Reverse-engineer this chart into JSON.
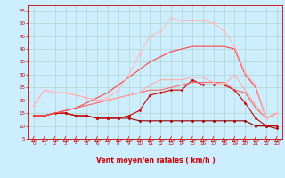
{
  "background_color": "#cceeff",
  "grid_color": "#aaccbb",
  "xlabel": "Vent moyen/en rafales ( km/h )",
  "xlabel_color": "#cc0000",
  "tick_color": "#cc0000",
  "xlim": [
    -0.5,
    23.5
  ],
  "ylim": [
    5,
    57
  ],
  "yticks": [
    5,
    10,
    15,
    20,
    25,
    30,
    35,
    40,
    45,
    50,
    55
  ],
  "xticks": [
    0,
    1,
    2,
    3,
    4,
    5,
    6,
    7,
    8,
    9,
    10,
    11,
    12,
    13,
    14,
    15,
    16,
    17,
    18,
    19,
    20,
    21,
    22,
    23
  ],
  "series": [
    {
      "x": [
        0,
        1,
        2,
        3,
        4,
        5,
        6,
        7,
        8,
        9,
        10,
        11,
        12,
        13,
        14,
        15,
        16,
        17,
        18,
        19,
        20,
        21,
        22,
        23
      ],
      "y": [
        14,
        14,
        15,
        15,
        14,
        14,
        13,
        13,
        13,
        13,
        12,
        12,
        12,
        12,
        12,
        12,
        12,
        12,
        12,
        12,
        12,
        10,
        10,
        9
      ],
      "color": "#990000",
      "lw": 0.8,
      "marker": "D",
      "markersize": 1.5
    },
    {
      "x": [
        0,
        1,
        2,
        3,
        4,
        5,
        6,
        7,
        8,
        9,
        10,
        11,
        12,
        13,
        14,
        15,
        16,
        17,
        18,
        19,
        20,
        21,
        22,
        23
      ],
      "y": [
        14,
        14,
        15,
        15,
        14,
        14,
        13,
        13,
        13,
        14,
        16,
        22,
        23,
        24,
        24,
        28,
        26,
        26,
        26,
        24,
        19,
        13,
        10,
        10
      ],
      "color": "#cc0000",
      "lw": 0.8,
      "marker": "D",
      "markersize": 1.5
    },
    {
      "x": [
        0,
        1,
        2,
        3,
        4,
        5,
        6,
        7,
        8,
        9,
        10,
        11,
        12,
        13,
        14,
        15,
        16,
        17,
        18,
        19,
        20,
        21,
        22,
        23
      ],
      "y": [
        14,
        14,
        15,
        16,
        17,
        18,
        19,
        20,
        21,
        22,
        23,
        24,
        24,
        25,
        26,
        27,
        27,
        27,
        27,
        24,
        23,
        17,
        13,
        15
      ],
      "color": "#ff6666",
      "lw": 0.8,
      "marker": null
    },
    {
      "x": [
        0,
        1,
        2,
        3,
        4,
        5,
        6,
        7,
        8,
        9,
        10,
        11,
        12,
        13,
        14,
        15,
        16,
        17,
        18,
        19,
        20,
        21,
        22,
        23
      ],
      "y": [
        18,
        24,
        23,
        23,
        22,
        21,
        20,
        20,
        21,
        22,
        23,
        26,
        28,
        28,
        28,
        29,
        29,
        27,
        26,
        30,
        24,
        18,
        13,
        15
      ],
      "color": "#ffaaaa",
      "lw": 0.8,
      "marker": null
    },
    {
      "x": [
        0,
        1,
        2,
        3,
        4,
        5,
        6,
        7,
        8,
        9,
        10,
        11,
        12,
        13,
        14,
        15,
        16,
        17,
        18,
        19,
        20,
        21,
        22,
        23
      ],
      "y": [
        14,
        14,
        15,
        16,
        17,
        19,
        21,
        23,
        26,
        29,
        32,
        35,
        37,
        39,
        40,
        41,
        41,
        41,
        41,
        40,
        30,
        25,
        13,
        15
      ],
      "color": "#ff4444",
      "lw": 0.8,
      "marker": null
    },
    {
      "x": [
        0,
        1,
        2,
        3,
        4,
        5,
        6,
        7,
        8,
        9,
        10,
        11,
        12,
        13,
        14,
        15,
        16,
        17,
        18,
        19,
        20,
        21,
        22,
        23
      ],
      "y": [
        18,
        24,
        23,
        23,
        22,
        21,
        20,
        21,
        24,
        30,
        38,
        45,
        47,
        52,
        51,
        51,
        51,
        50,
        47,
        41,
        31,
        26,
        13,
        15
      ],
      "color": "#ffbbbb",
      "lw": 0.8,
      "marker": "D",
      "markersize": 1.5
    }
  ],
  "figsize": [
    3.2,
    2.0
  ],
  "dpi": 100
}
